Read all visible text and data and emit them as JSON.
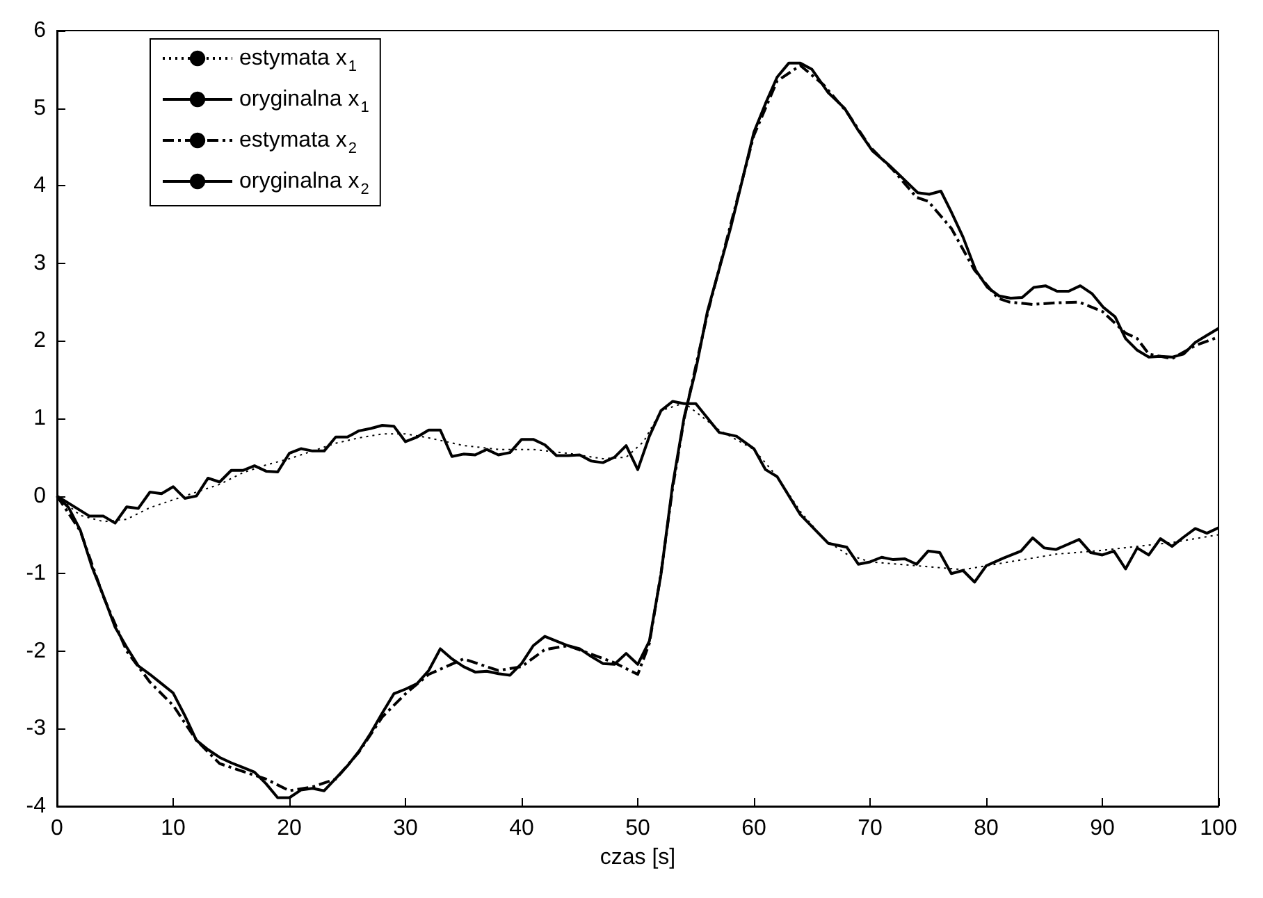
{
  "chart_data": {
    "type": "line",
    "xlabel": "czas [s]",
    "xlim": [
      0,
      100
    ],
    "xticks": [
      0,
      10,
      20,
      30,
      40,
      50,
      60,
      70,
      80,
      90,
      100
    ],
    "ylim": [
      -4,
      6
    ],
    "yticks": [
      -4,
      -3,
      -2,
      -1,
      0,
      1,
      2,
      3,
      4,
      5,
      6
    ],
    "grid": false,
    "legend": "top left",
    "marker": "none",
    "series": [
      {
        "name": "estymata x$_{1}$",
        "color": "#000000",
        "line_style": "dotted",
        "x": [
          0,
          2,
          4,
          6,
          8,
          10,
          12,
          14,
          16,
          18,
          20,
          22,
          24,
          26,
          28,
          30,
          32,
          35,
          38,
          41,
          44,
          47,
          49,
          50.5,
          52,
          54,
          57,
          60,
          62,
          64,
          66,
          68,
          70,
          74,
          78,
          82,
          86,
          90,
          96,
          100
        ],
        "values": [
          0,
          -0.25,
          -0.33,
          -0.3,
          -0.15,
          -0.05,
          0.05,
          0.15,
          0.3,
          0.4,
          0.48,
          0.58,
          0.68,
          0.75,
          0.8,
          0.8,
          0.75,
          0.65,
          0.6,
          0.6,
          0.55,
          0.48,
          0.5,
          0.7,
          1.1,
          1.2,
          0.85,
          0.6,
          0.25,
          -0.2,
          -0.55,
          -0.75,
          -0.85,
          -0.9,
          -0.95,
          -0.85,
          -0.75,
          -0.7,
          -0.6,
          -0.5
        ]
      },
      {
        "name": "oryginalna x$_{1}$",
        "color": "#000000",
        "line_style": "solid",
        "x": [
          0,
          2.8,
          4,
          5,
          6,
          7,
          8,
          9,
          10,
          11,
          12,
          13,
          14,
          15,
          16,
          17,
          18,
          19,
          20,
          21,
          22,
          23,
          24,
          25,
          26,
          27,
          28,
          29,
          30,
          31,
          32,
          33,
          34,
          35,
          36,
          37,
          38,
          39,
          40,
          41,
          42,
          43,
          44,
          45,
          46,
          47,
          48,
          49,
          50,
          51,
          52,
          53,
          54,
          55,
          57,
          58.5,
          60,
          61,
          62,
          64,
          66.4,
          68,
          69,
          70,
          71,
          72,
          73,
          74,
          75,
          76,
          77,
          78,
          79,
          80,
          81.5,
          83,
          84,
          85,
          86,
          88,
          89,
          90,
          91,
          92,
          93,
          94,
          95,
          96,
          97,
          98,
          99,
          100
        ],
        "values": [
          0,
          -0.26,
          -0.26,
          -0.35,
          -0.14,
          -0.16,
          0.05,
          0.03,
          0.12,
          -0.03,
          0,
          0.23,
          0.18,
          0.33,
          0.33,
          0.39,
          0.32,
          0.31,
          0.55,
          0.61,
          0.58,
          0.58,
          0.76,
          0.76,
          0.84,
          0.87,
          0.91,
          0.9,
          0.7,
          0.76,
          0.85,
          0.85,
          0.51,
          0.54,
          0.53,
          0.6,
          0.53,
          0.56,
          0.73,
          0.73,
          0.66,
          0.52,
          0.52,
          0.53,
          0.45,
          0.43,
          0.5,
          0.65,
          0.34,
          0.77,
          1.1,
          1.22,
          1.19,
          1.19,
          0.82,
          0.77,
          0.61,
          0.34,
          0.25,
          -0.24,
          -0.61,
          -0.66,
          -0.88,
          -0.85,
          -0.79,
          -0.82,
          -0.81,
          -0.88,
          -0.71,
          -0.73,
          -1.0,
          -0.96,
          -1.11,
          -0.9,
          -0.8,
          -0.71,
          -0.54,
          -0.67,
          -0.69,
          -0.56,
          -0.73,
          -0.76,
          -0.71,
          -0.94,
          -0.67,
          -0.76,
          -0.55,
          -0.65,
          -0.53,
          -0.42,
          -0.48,
          -0.41
        ]
      },
      {
        "name": "estymata x$_{2}$",
        "color": "#000000",
        "line_style": "dashed",
        "x": [
          0,
          2,
          4,
          6,
          8,
          10,
          12,
          14,
          16,
          18,
          20,
          22,
          24,
          26,
          28,
          30,
          32,
          35,
          38,
          40,
          42,
          44,
          48,
          50,
          51,
          52,
          53,
          54,
          56,
          58,
          60,
          62,
          64,
          66,
          68,
          70,
          72,
          74,
          75,
          77,
          79,
          81,
          82,
          84,
          86,
          88,
          90,
          92,
          93,
          94,
          96,
          98,
          100
        ],
        "values": [
          0,
          -0.45,
          -1.3,
          -2.0,
          -2.4,
          -2.7,
          -3.15,
          -3.45,
          -3.55,
          -3.65,
          -3.8,
          -3.75,
          -3.65,
          -3.3,
          -2.85,
          -2.55,
          -2.3,
          -2.1,
          -2.25,
          -2.2,
          -1.98,
          -1.93,
          -2.15,
          -2.3,
          -1.9,
          -1.0,
          0.1,
          1.0,
          2.35,
          3.5,
          4.65,
          5.35,
          5.55,
          5.3,
          4.95,
          4.5,
          4.2,
          3.85,
          3.8,
          3.45,
          2.91,
          2.55,
          2.5,
          2.47,
          2.49,
          2.5,
          2.38,
          2.1,
          2.03,
          1.83,
          1.77,
          1.94,
          2.05
        ]
      },
      {
        "name": "oryginalna x$_{2}$",
        "color": "#000000",
        "line_style": "solid",
        "x": [
          0,
          1,
          2,
          3,
          4,
          5,
          6,
          7,
          8,
          9,
          10,
          11,
          12,
          13,
          14,
          15,
          16,
          17,
          18,
          19,
          20,
          21,
          22,
          23,
          24,
          25,
          26,
          27,
          28,
          29,
          30,
          31,
          32,
          33,
          34,
          35,
          36,
          37,
          38,
          39,
          40,
          41,
          42,
          43,
          44,
          45,
          46,
          47,
          48,
          49,
          50,
          51,
          52,
          53,
          54,
          55,
          56,
          57,
          58,
          59,
          60,
          61,
          62,
          63,
          64,
          65,
          66.4,
          67.8,
          69,
          70.2,
          71.6,
          73,
          74.1,
          75.1,
          76.1,
          77,
          78,
          79.1,
          80.1,
          81.1,
          82.1,
          83.1,
          84.1,
          85.1,
          86.1,
          87.1,
          88.1,
          89.1,
          90.1,
          91.1,
          92,
          93,
          94,
          95,
          96,
          97,
          98,
          99,
          100
        ],
        "values": [
          0,
          -0.15,
          -0.44,
          -0.91,
          -1.29,
          -1.69,
          -1.95,
          -2.19,
          -2.3,
          -2.42,
          -2.54,
          -2.83,
          -3.15,
          -3.27,
          -3.37,
          -3.44,
          -3.5,
          -3.56,
          -3.71,
          -3.89,
          -3.89,
          -3.79,
          -3.77,
          -3.8,
          -3.64,
          -3.48,
          -3.29,
          -3.06,
          -2.8,
          -2.55,
          -2.49,
          -2.42,
          -2.25,
          -1.97,
          -2.1,
          -2.2,
          -2.27,
          -2.26,
          -2.29,
          -2.31,
          -2.16,
          -1.93,
          -1.81,
          -1.87,
          -1.93,
          -1.97,
          -2.07,
          -2.16,
          -2.17,
          -2.03,
          -2.17,
          -1.87,
          -1.01,
          0.14,
          1.02,
          1.63,
          2.38,
          2.92,
          3.46,
          4.07,
          4.69,
          5.06,
          5.4,
          5.58,
          5.58,
          5.5,
          5.2,
          5.0,
          4.71,
          4.45,
          4.27,
          4.07,
          3.91,
          3.89,
          3.93,
          3.66,
          3.34,
          2.91,
          2.69,
          2.58,
          2.55,
          2.56,
          2.69,
          2.71,
          2.64,
          2.64,
          2.71,
          2.61,
          2.43,
          2.31,
          2.03,
          1.88,
          1.79,
          1.8,
          1.79,
          1.83,
          1.98,
          2.07,
          2.16
        ]
      }
    ]
  }
}
